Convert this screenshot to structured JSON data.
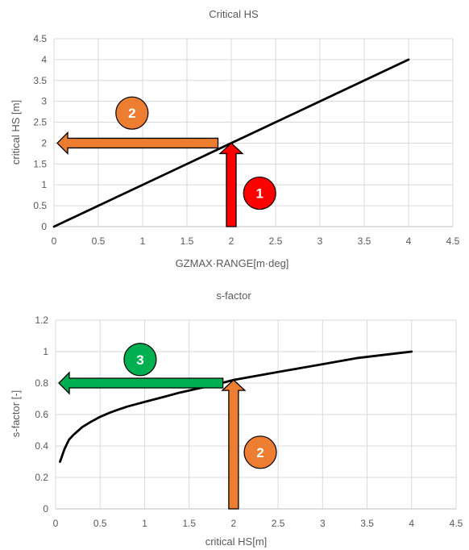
{
  "chart_data": [
    {
      "type": "line",
      "title": "Critical HS",
      "xlabel": "GZMAX·RANGE[m·deg]",
      "ylabel": "critical HS [m]",
      "xlim": [
        0,
        4.5
      ],
      "ylim": [
        0,
        4.5
      ],
      "xticks": [
        "0",
        "0.5",
        "1",
        "1.5",
        "2",
        "2.5",
        "3",
        "3.5",
        "4",
        "4.5"
      ],
      "yticks": [
        "0",
        "0.5",
        "1",
        "1.5",
        "2",
        "2.5",
        "3",
        "3.5",
        "4",
        "4.5"
      ],
      "grid": true,
      "series": [
        {
          "x": [
            0,
            4
          ],
          "y": [
            0,
            4
          ],
          "color": "#000000"
        }
      ],
      "annotations": [
        {
          "kind": "arrow-up",
          "x": 2,
          "y_from": 0,
          "y_to": 2,
          "color": "#ff0000",
          "badge": "1",
          "badge_color": "#ff0000",
          "badge_pos": [
            2.32,
            0.8
          ]
        },
        {
          "kind": "arrow-left",
          "y": 2,
          "x_from": 1.85,
          "x_to": 0,
          "color": "#ed7d31",
          "badge": "2",
          "badge_color": "#ed7d31",
          "badge_pos": [
            0.88,
            2.72
          ]
        }
      ]
    },
    {
      "type": "line",
      "title": "s-factor",
      "xlabel": "critical HS[m]",
      "ylabel": "s-factor [-]",
      "xlim": [
        0,
        4.5
      ],
      "ylim": [
        0,
        1.2
      ],
      "xticks": [
        "0",
        "0.5",
        "1",
        "1.5",
        "2",
        "2.5",
        "3",
        "3.5",
        "4",
        "4.5"
      ],
      "yticks": [
        "0",
        "0.2",
        "0.4",
        "0.6",
        "0.8",
        "1",
        "1.2"
      ],
      "grid": true,
      "series": [
        {
          "x": [
            0.05,
            0.1,
            0.15,
            0.2,
            0.3,
            0.4,
            0.5,
            0.6,
            0.7,
            0.8,
            0.9,
            1.0,
            1.2,
            1.4,
            1.6,
            1.8,
            2.0,
            2.5,
            3.0,
            3.4,
            4.0
          ],
          "y": [
            0.3,
            0.38,
            0.44,
            0.47,
            0.52,
            0.555,
            0.585,
            0.61,
            0.63,
            0.65,
            0.665,
            0.68,
            0.71,
            0.74,
            0.765,
            0.79,
            0.82,
            0.87,
            0.92,
            0.96,
            1.0
          ],
          "color": "#000000"
        }
      ],
      "annotations": [
        {
          "kind": "arrow-up",
          "x": 2,
          "y_from": 0,
          "y_to": 0.82,
          "color": "#ed7d31",
          "badge": "2",
          "badge_color": "#ed7d31",
          "badge_pos": [
            2.3,
            0.36
          ]
        },
        {
          "kind": "arrow-left",
          "y": 0.8,
          "x_from": 1.88,
          "x_to": 0,
          "color": "#00b050",
          "badge": "3",
          "badge_color": "#00b050",
          "badge_pos": [
            0.95,
            0.95
          ]
        }
      ]
    }
  ]
}
